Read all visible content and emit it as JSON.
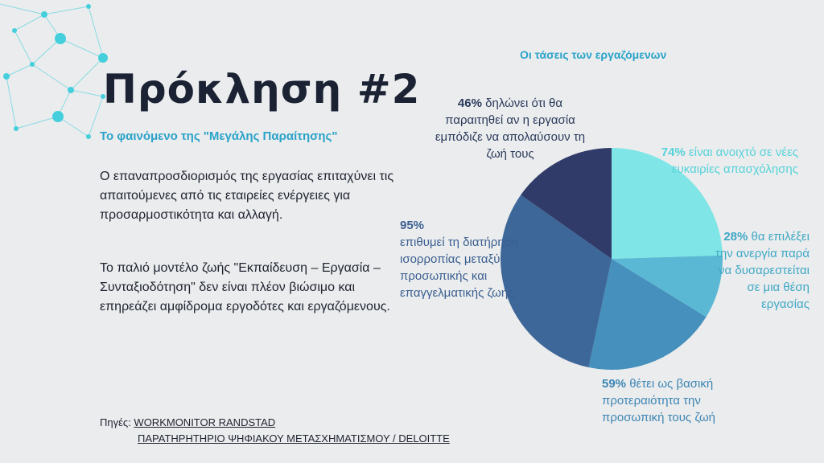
{
  "slide": {
    "title": "Πρόκληση #2",
    "subtitle": "Το φαινόμενο της \"Μεγάλης Παραίτησης\"",
    "paragraph1": "Ο επαναπροσδιορισμός της εργασίας επιταχύνει τις απαιτούμενες από τις εταιρείες ενέργειες για προσαρμοστικότητα και αλλαγή.",
    "paragraph2": "Το παλιό μοντέλο ζωής \"Εκπαίδευση – Εργασία – Συνταξιοδότηση\" δεν είναι πλέον βιώσιμο και επηρεάζει αμφίδρομα εργοδότες και εργαζόμενους.",
    "sources_label": "Πηγές:",
    "source1": "WORKMONITOR RANDSTAD",
    "source2": "ΠΑΡΑΤΗΡΗΤΗΡΙΟ ΨΗΦΙΑΚΟΥ ΜΕΤΑΣΧΗΜΑΤΙΣΜΟΥ / DELOITTE"
  },
  "chart_data": {
    "type": "pie",
    "title": "Οι τάσεις των εργαζόμενων",
    "slices": [
      {
        "value": 74,
        "pct": "74%",
        "text": "είναι ανοιχτό σε νέες ευκαιρίες απασχόλησης",
        "color": "#80e5e6",
        "label_color": "#55d3da"
      },
      {
        "value": 28,
        "pct": "28%",
        "text": "θα επιλέξει την ανεργία παρά να δυσαρεστείται σε μια θέση εργασίας",
        "color": "#5bb8d4",
        "label_color": "#3ea8c6"
      },
      {
        "value": 59,
        "pct": "59%",
        "text": "θέτει ως βασική προτεραιότητα την προσωπική τους ζωή",
        "color": "#4590bc",
        "label_color": "#3d86b4"
      },
      {
        "value": 95,
        "pct": "95%",
        "text": "επιθυμεί τη διατήρηση ισορροπίας μεταξύ προσωπικής και επαγγελματικής ζωής.",
        "color": "#3c6798",
        "label_color": "#3a5f90"
      },
      {
        "value": 46,
        "pct": "46%",
        "text": "δηλώνει ότι θα παραιτηθεί αν η εργασία εμπόδιζε να απολαύσουν τη ζωή τους",
        "color": "#313b69",
        "label_color": "#2a3a5c"
      }
    ]
  }
}
